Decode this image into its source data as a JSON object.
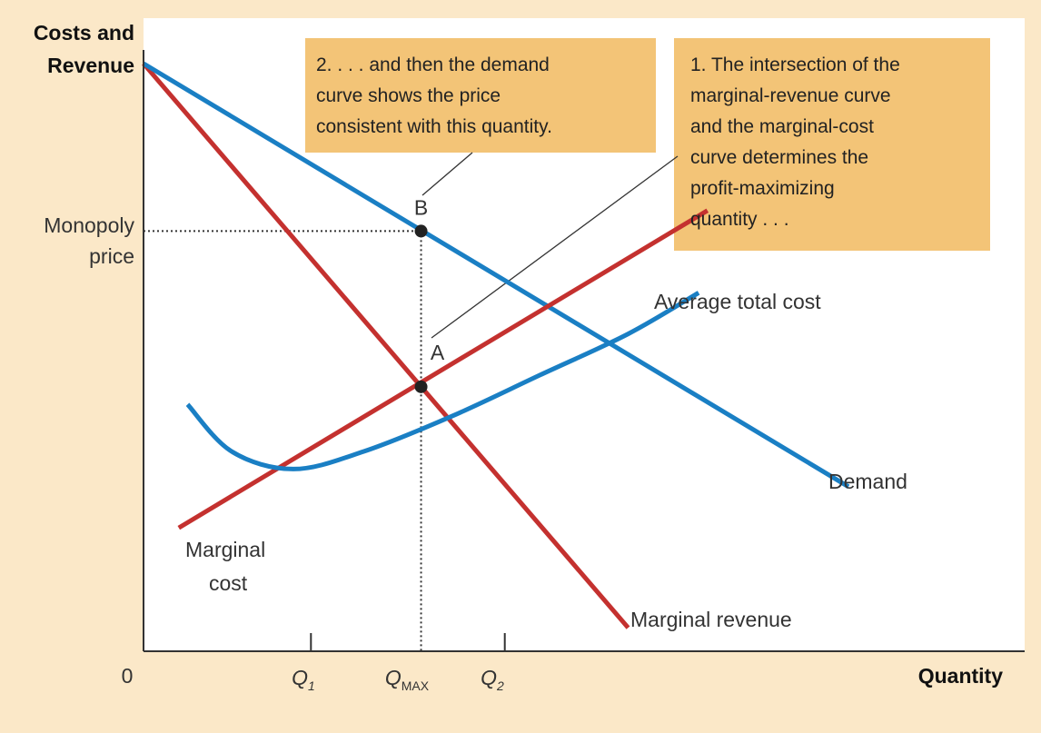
{
  "chart_data": {
    "type": "line",
    "ylabel": [
      "Costs and",
      "Revenue"
    ],
    "xlabel": "Quantity",
    "origin": "0",
    "xlim": [
      0,
      100
    ],
    "ylim": [
      0,
      100
    ],
    "series": [
      {
        "name": "Demand",
        "color": "#1a7fc4",
        "points": [
          [
            0,
            100
          ],
          [
            80,
            28
          ]
        ]
      },
      {
        "name": "Marginal revenue",
        "color": "#c4312f",
        "points": [
          [
            0,
            100
          ],
          [
            55,
            4
          ]
        ]
      },
      {
        "name": "Marginal cost",
        "color": "#c4312f",
        "points": [
          [
            4,
            21
          ],
          [
            64,
            75
          ]
        ]
      },
      {
        "name": "Average total cost",
        "color": "#1a7fc4",
        "points": [
          [
            5,
            42
          ],
          [
            10,
            34
          ],
          [
            17,
            31
          ],
          [
            25,
            34
          ],
          [
            35,
            40
          ],
          [
            45,
            47
          ],
          [
            55,
            54
          ],
          [
            63,
            61
          ]
        ]
      }
    ],
    "series_labels": {
      "demand": "Demand",
      "marginal_revenue": "Marginal revenue",
      "marginal_cost": [
        "Marginal",
        "cost"
      ],
      "average_total_cost": "Average total cost"
    },
    "points": [
      {
        "label": "B",
        "x": 31.5,
        "y": 71.5
      },
      {
        "label": "A",
        "x": 31.5,
        "y": 45
      }
    ],
    "ticks": {
      "q1": {
        "label": "Q",
        "sub": "1",
        "x": 19
      },
      "qmax": {
        "label": "Q",
        "sub": "MAX",
        "x": 31.5
      },
      "q2": {
        "label": "Q",
        "sub": "2",
        "x": 41
      }
    },
    "y_tick": {
      "label": [
        "Monopoly",
        "price"
      ],
      "y": 71.5
    },
    "annotations": {
      "note1": [
        "1. The intersection of the",
        "marginal-revenue curve",
        "and the marginal-cost",
        "curve determines the",
        "profit-maximizing",
        "quantity . . ."
      ],
      "note2": [
        "2. . . . and then the demand",
        "curve shows the price",
        "consistent with this quantity."
      ]
    },
    "colors": {
      "background": "#fbe8c8",
      "note_box": "#f3c477",
      "red": "#c4312f",
      "blue": "#1a7fc4"
    }
  }
}
